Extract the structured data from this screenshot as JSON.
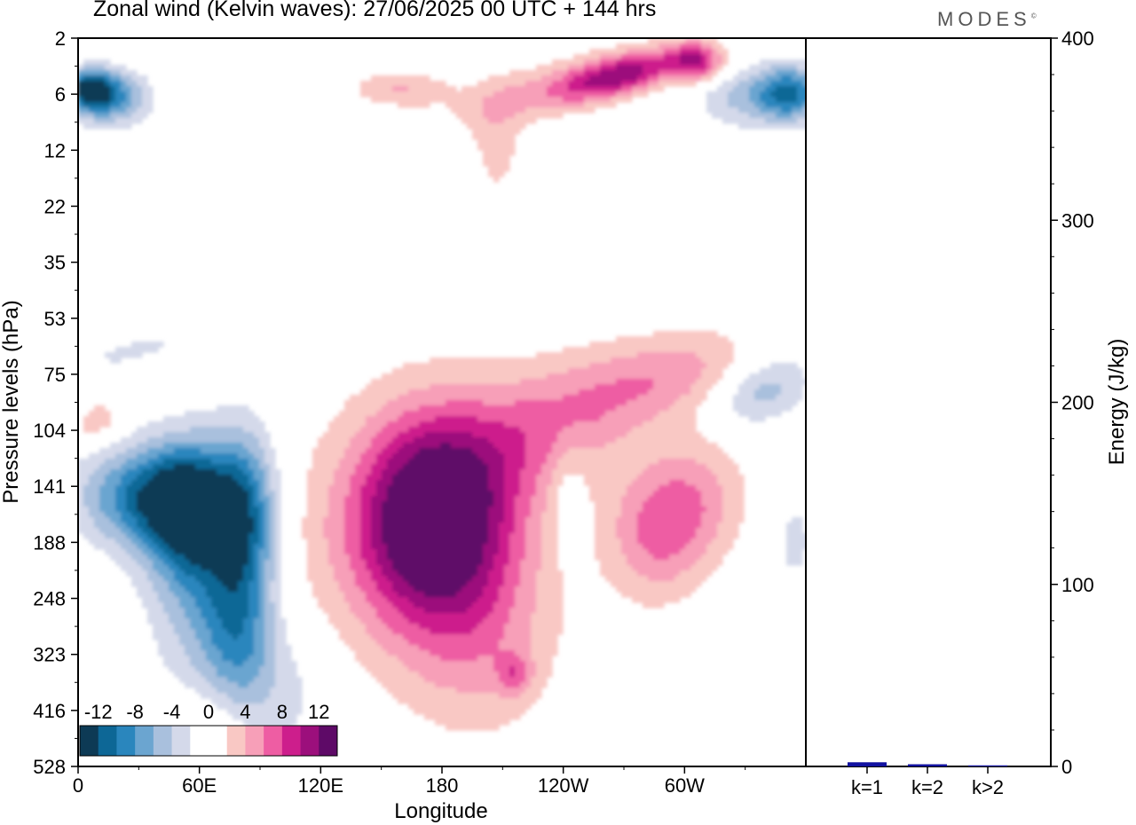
{
  "header": {
    "title": "Zonal wind (Kelvin waves):  27/06/2025  00 UTC  + 144 hrs",
    "brand": "MODES",
    "brand_mark": "©"
  },
  "colors": {
    "neg": [
      "#0d3a55",
      "#0d6796",
      "#2a86bd",
      "#6ba5d0",
      "#a9c0dd",
      "#d4d9ea"
    ],
    "zero": "#ffffff",
    "pos": [
      "#f9c8c4",
      "#f79fb8",
      "#ee5da3",
      "#cd1e8c",
      "#9c0f7c",
      "#5e0a67"
    ],
    "energy_bar": "#1212a0"
  },
  "chart_data": [
    {
      "type": "heatmap",
      "title": "Zonal wind (Kelvin waves):  27/06/2025  00 UTC  + 144 hrs",
      "xlabel": "Longitude",
      "ylabel": "Pressure levels (hPa)",
      "x_ticks": [
        "0",
        "60E",
        "120E",
        "180",
        "120W",
        "60W"
      ],
      "x_tick_degrees": [
        0,
        60,
        120,
        180,
        240,
        300
      ],
      "xlim": [
        0,
        360
      ],
      "y_ticks": [
        "2",
        "6",
        "12",
        "22",
        "35",
        "53",
        "75",
        "104",
        "141",
        "188",
        "248",
        "323",
        "416",
        "528"
      ],
      "y_scale": "log-pressure",
      "colorbar": {
        "labels": [
          "-12",
          "-8",
          "-4",
          "0",
          "4",
          "8",
          "12"
        ],
        "levels": [
          -14,
          -12,
          -10,
          -8,
          -6,
          -4,
          -2,
          2,
          4,
          6,
          8,
          10,
          12,
          14
        ],
        "placement": "bottom-left"
      },
      "features": [
        {
          "lon": 175,
          "hPa": 150,
          "value": 13
        },
        {
          "lon": 52,
          "hPa": 150,
          "value": -11
        },
        {
          "lon": 80,
          "hPa": 160,
          "value": -9
        },
        {
          "lon": 20,
          "hPa": 140,
          "value": -7
        },
        {
          "lon": 285,
          "hPa": 165,
          "value": 6
        },
        {
          "lon": 250,
          "hPa": 100,
          "value": 4
        },
        {
          "lon": 5,
          "hPa": 6,
          "value": -10
        },
        {
          "lon": 355,
          "hPa": 6,
          "value": -9
        },
        {
          "lon": 280,
          "hPa": 4,
          "value": 9
        },
        {
          "lon": 305,
          "hPa": 4,
          "value": 9
        },
        {
          "lon": 335,
          "hPa": 100,
          "value": -6
        },
        {
          "lon": 45,
          "hPa": 528,
          "value": 2
        }
      ]
    },
    {
      "type": "bar",
      "ylabel": "Energy (J/kg)",
      "ylim": [
        0,
        400
      ],
      "y_ticks": [
        "0",
        "100",
        "200",
        "300",
        "400"
      ],
      "categories": [
        "k=1",
        "k=2",
        "k>2"
      ],
      "values": [
        2.3,
        1.2,
        0.6
      ]
    }
  ]
}
